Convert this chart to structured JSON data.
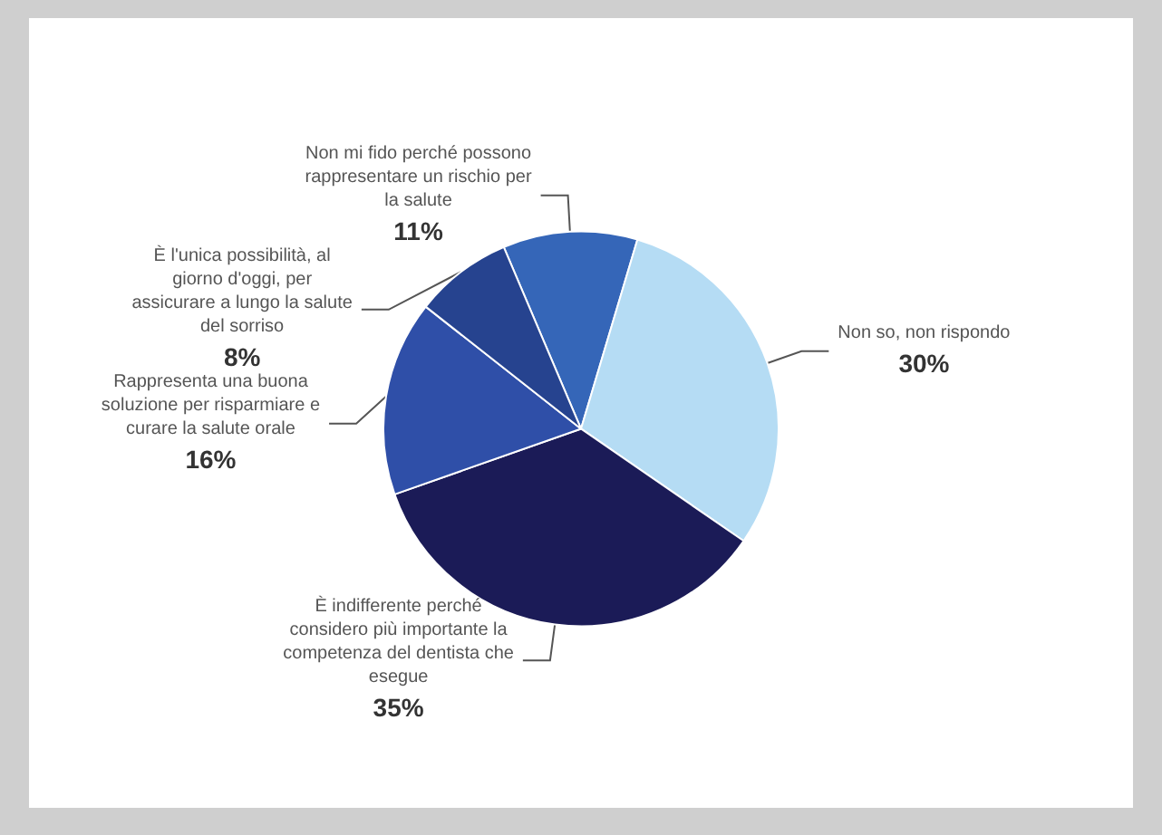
{
  "chart_data": {
    "type": "pie",
    "categories": [
      "Non mi fido perché possono rappresentare un rischio per la salute",
      "Non so, non rispondo",
      "È indifferente perché considero più importante la competenza del dentista che esegue",
      "Rappresenta una buona soluzione per risparmiare e curare la salute orale",
      "È l'unica possibilità, al giorno d'oggi, per assicurare a lungo la salute del sorriso"
    ],
    "values": [
      11,
      30,
      35,
      16,
      8
    ],
    "colors": [
      "#3566b8",
      "#b5dcf4",
      "#1b1b57",
      "#2f4fa8",
      "#26438f"
    ],
    "value_labels": [
      "11%",
      "30%",
      "35%",
      "16%",
      "8%"
    ],
    "legend": false
  }
}
